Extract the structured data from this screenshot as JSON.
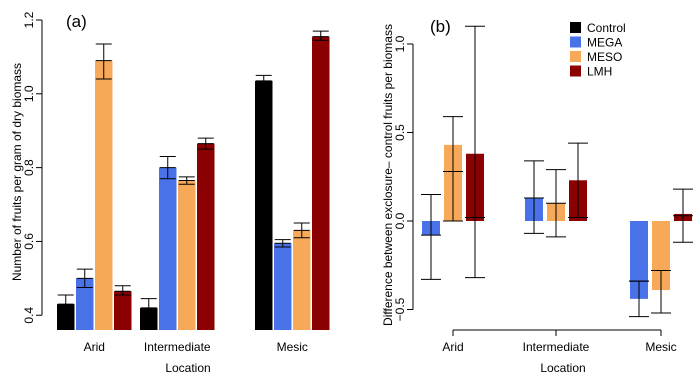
{
  "colors": {
    "Control": "#000000",
    "MEGA": "#4a72e8",
    "MESO": "#f7a95a",
    "LMH": "#8b0000"
  },
  "legend": {
    "placement": "top-right of panel (b)",
    "entries": [
      "Control",
      "MEGA",
      "MESO",
      "LMH"
    ]
  },
  "chart_data": [
    {
      "type": "bar",
      "panel_label": "(a)",
      "categories": [
        "Arid",
        "Intermediate",
        "Mesic"
      ],
      "xlabel": "Location",
      "ylabel": "Number of fruits per gram of dry biomass",
      "ylim": [
        0.36,
        1.2
      ],
      "yticks": [
        0.4,
        0.6,
        0.8,
        1.0,
        1.2
      ],
      "ytick_labels": [
        "0.4",
        "0.6",
        "0.8",
        "1.0",
        "1.2"
      ],
      "baseline": 0.36,
      "series": [
        {
          "name": "Control",
          "values": [
            0.43,
            0.42,
            1.035
          ],
          "err_low": [
            0.405,
            0.395,
            1.02
          ],
          "err_high": [
            0.455,
            0.445,
            1.05
          ]
        },
        {
          "name": "MEGA",
          "values": [
            0.5,
            0.8,
            0.595
          ],
          "err_low": [
            0.475,
            0.77,
            0.585
          ],
          "err_high": [
            0.525,
            0.83,
            0.605
          ]
        },
        {
          "name": "MESO",
          "values": [
            1.09,
            0.765,
            0.63
          ],
          "err_low": [
            1.04,
            0.755,
            0.61
          ],
          "err_high": [
            1.135,
            0.775,
            0.65
          ]
        },
        {
          "name": "LMH",
          "values": [
            0.465,
            0.865,
            1.155
          ],
          "err_low": [
            0.455,
            0.85,
            1.145
          ],
          "err_high": [
            0.48,
            0.88,
            1.17
          ]
        }
      ]
    },
    {
      "type": "bar",
      "panel_label": "(b)",
      "categories": [
        "Arid",
        "Intermediate",
        "Mesic"
      ],
      "xlabel": "Location",
      "ylabel": "Difference between exclosure– control fruits per biomass",
      "ylim": [
        -0.58,
        1.12
      ],
      "yticks": [
        -0.5,
        0.0,
        0.5,
        1.0
      ],
      "ytick_labels": [
        "−0.5",
        "0.0",
        "0.5",
        "1.0"
      ],
      "baseline": 0.0,
      "series": [
        {
          "name": "MEGA",
          "values": [
            -0.08,
            0.13,
            -0.44
          ],
          "mid": [
            -0.08,
            0.13,
            -0.34
          ],
          "err_low": [
            -0.33,
            -0.07,
            -0.54
          ],
          "err_high": [
            0.15,
            0.34,
            -0.34
          ]
        },
        {
          "name": "MESO",
          "values": [
            0.43,
            0.1,
            -0.39
          ],
          "mid": [
            0.28,
            0.1,
            -0.28
          ],
          "err_low": [
            0.0,
            -0.09,
            -0.52
          ],
          "err_high": [
            0.59,
            0.29,
            -0.28
          ]
        },
        {
          "name": "LMH",
          "values": [
            0.38,
            0.23,
            0.04
          ],
          "mid": [
            0.02,
            0.02,
            0.03
          ],
          "err_low": [
            -0.32,
            0.02,
            -0.12
          ],
          "err_high": [
            1.1,
            0.44,
            0.18
          ]
        }
      ]
    }
  ]
}
